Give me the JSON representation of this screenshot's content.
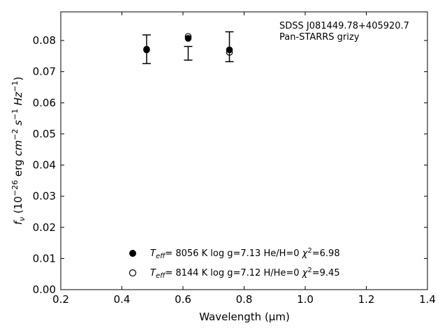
{
  "chart_data": {
    "type": "scatter",
    "xlabel": "Wavelength (μm)",
    "ylabel": "f_ν (10^-26 erg cm^-2 s^-1 Hz^-1)",
    "xlim": [
      0.2,
      1.4
    ],
    "ylim": [
      0.0,
      0.0892
    ],
    "xticks": [
      "0.2",
      "0.4",
      "0.6",
      "0.8",
      "1.0",
      "1.2",
      "1.4"
    ],
    "yticks": [
      "0.00",
      "0.01",
      "0.02",
      "0.03",
      "0.04",
      "0.05",
      "0.06",
      "0.07",
      "0.08"
    ],
    "grid": false,
    "annotation": [
      "SDSS J081449.78+405920.7",
      "Pan-STARRS grizy"
    ],
    "observed": {
      "x": [
        0.481,
        0.617,
        0.752
      ],
      "y": [
        0.0772,
        0.0759,
        0.078
      ],
      "err": [
        0.0046,
        0.0022,
        0.0048
      ]
    },
    "series": [
      {
        "marker": "filled-circle",
        "legend": {
          "teff": "8056 K",
          "logg": "log g=7.13",
          "comp": "He/H=0",
          "chi": "=6.98"
        },
        "x": [
          0.481,
          0.617,
          0.752
        ],
        "y": [
          0.0772,
          0.0807,
          0.077
        ]
      },
      {
        "marker": "open-circle",
        "legend": {
          "teff": "8144 K",
          "logg": "log g=7.12",
          "comp": "H/He=0",
          "chi": "=9.45"
        },
        "x": [
          0.481,
          0.617,
          0.752
        ],
        "y": [
          0.077,
          0.0813,
          0.0762
        ]
      }
    ],
    "legend_position": "lower-center"
  }
}
